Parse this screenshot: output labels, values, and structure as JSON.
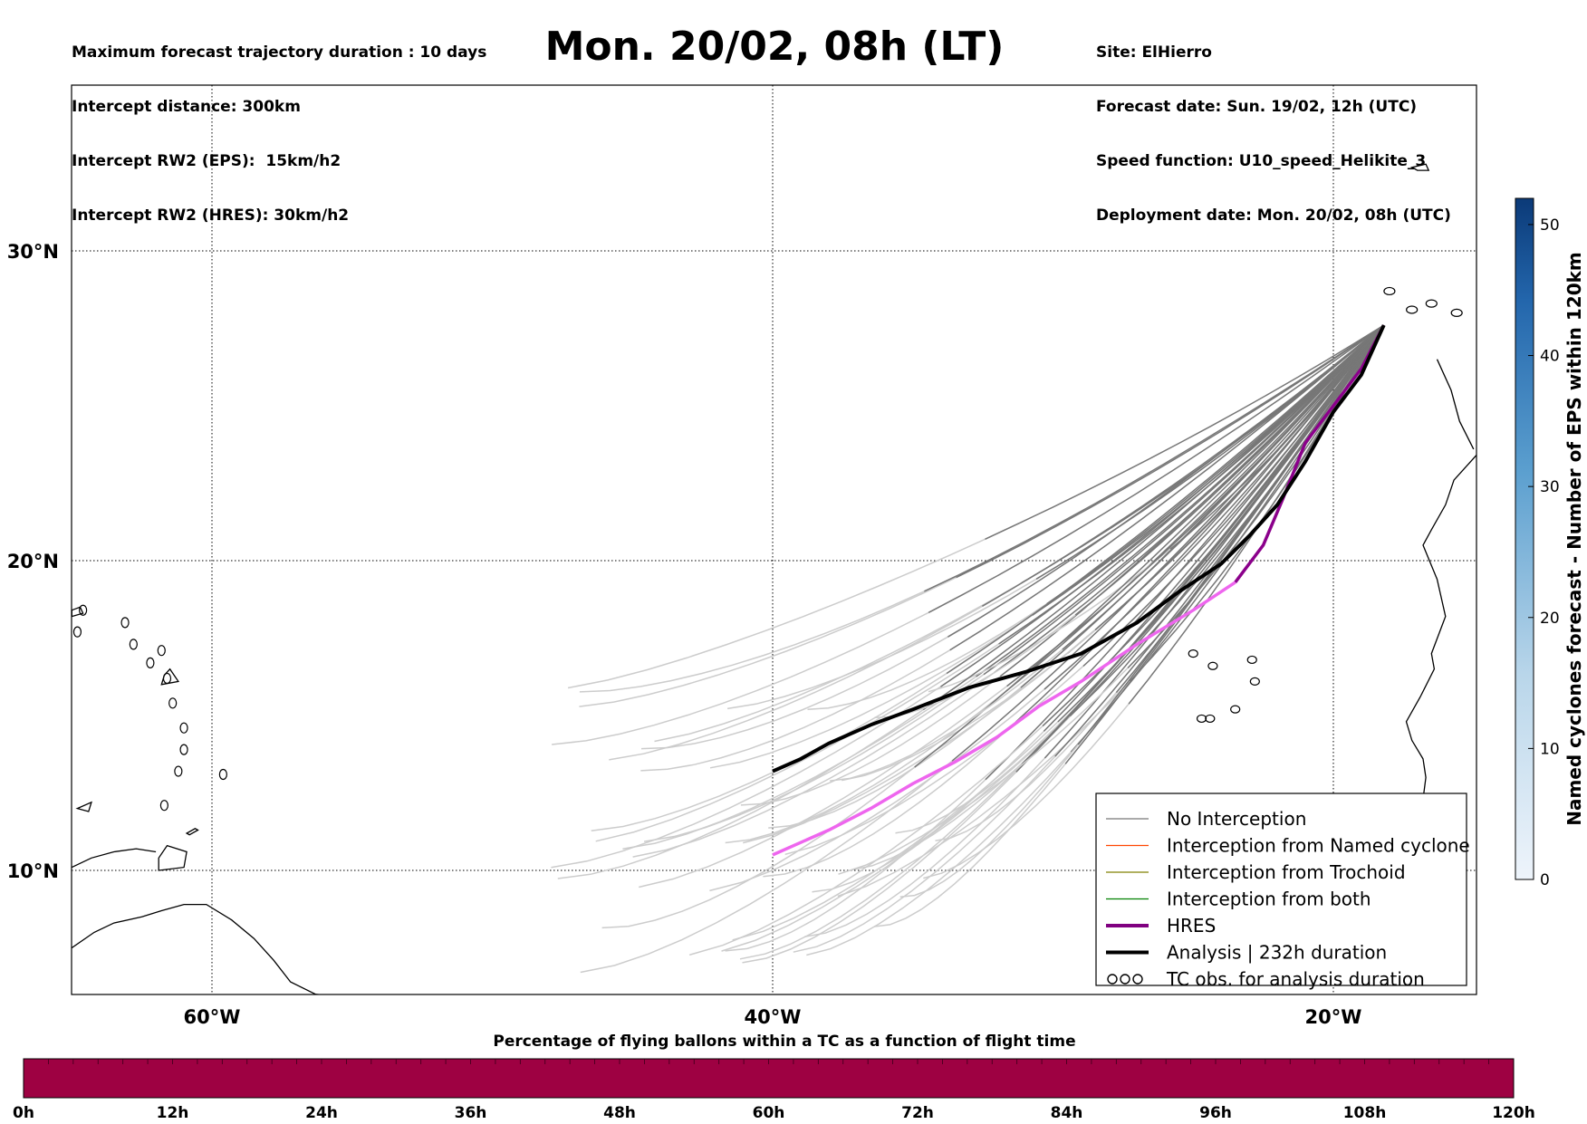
{
  "header": {
    "left_lines": [
      "Maximum forecast trajectory duration : 10 days",
      "Intercept distance: 300km",
      "Intercept RW2 (EPS):  15km/h2",
      "Intercept RW2 (HRES): 30km/h2"
    ],
    "title": "Mon. 20/02, 08h (LT)",
    "right_lines": [
      "Site: ElHierro",
      "Forecast date: Sun. 19/02, 12h (UTC)",
      "Speed function: U10_speed_Helikite_3",
      "Deployment date: Mon. 20/02, 08h (UTC)"
    ]
  },
  "map": {
    "lon_ticks": [
      {
        "lon": -60,
        "label": "60°W"
      },
      {
        "lon": -40,
        "label": "40°W"
      },
      {
        "lon": -20,
        "label": "20°W"
      }
    ],
    "lat_ticks": [
      {
        "lat": 30,
        "label": "30°N"
      },
      {
        "lat": 20,
        "label": "20°N"
      },
      {
        "lat": 10,
        "label": "10°N"
      }
    ],
    "extent": {
      "lon_min": -65,
      "lon_max": -15,
      "lat_min": 5.4,
      "lat_max": 35.3
    },
    "colors": {
      "eps_intercept_free": "#777777",
      "eps_late": "#cccccc",
      "hres_early": "#8b008b",
      "hres_late": "#ee66ee",
      "analysis": "#000000",
      "coast": "#000000"
    }
  },
  "chart_data": {
    "type": "line",
    "launch_site": {
      "lon": -18.2,
      "lat": 27.6
    },
    "series": [
      {
        "name": "Analysis | 232h duration",
        "lon": [
          -18.2,
          -19.0,
          -20.0,
          -21.0,
          -22.0,
          -23.0,
          -24.0,
          -25.5,
          -27.0,
          -29.0,
          -31.0,
          -33.0,
          -35.0,
          -36.5,
          -38.0,
          -39.0,
          -40.0
        ],
        "lat": [
          27.6,
          26.0,
          24.8,
          23.2,
          21.8,
          20.8,
          19.9,
          19.0,
          18.0,
          17.0,
          16.4,
          15.9,
          15.2,
          14.7,
          14.1,
          13.6,
          13.2
        ]
      },
      {
        "name": "HRES",
        "lon": [
          -18.2,
          -19.0,
          -20.0,
          -21.0,
          -21.8,
          -22.5,
          -23.5,
          -25.0,
          -27.0,
          -29.0,
          -30.5,
          -32.0,
          -33.5,
          -35.0,
          -36.5,
          -38.0,
          -40.0
        ],
        "lat": [
          27.6,
          26.2,
          25.0,
          23.8,
          22.0,
          20.5,
          19.3,
          18.4,
          17.3,
          16.1,
          15.3,
          14.3,
          13.5,
          12.8,
          12.0,
          11.3,
          10.5
        ]
      }
    ],
    "eps_members": 50
  },
  "legend": {
    "items": [
      {
        "label": "No Interception",
        "color": "#777777",
        "width": 1.2,
        "kind": "line"
      },
      {
        "label": "Interception from Named cyclone",
        "color": "#ff4500",
        "width": 1.2,
        "kind": "line"
      },
      {
        "label": "Interception from Trochoid",
        "color": "#808000",
        "width": 1.2,
        "kind": "line"
      },
      {
        "label": "Interception from both",
        "color": "#008000",
        "width": 1.2,
        "kind": "line"
      },
      {
        "label": "HRES",
        "color": "#800080",
        "width": 4,
        "kind": "line"
      },
      {
        "label": "Analysis | 232h duration",
        "color": "#000000",
        "width": 4,
        "kind": "line"
      },
      {
        "label": "TC obs. for analysis duration",
        "color": "#000000",
        "width": 1,
        "kind": "symbol"
      }
    ]
  },
  "colorbar_right": {
    "label": "Named cyclones forecast - Number of EPS within 120km",
    "min": 0,
    "max": 52,
    "ticks": [
      "0",
      "10",
      "20",
      "30",
      "40",
      "50"
    ],
    "tick_values": [
      0,
      10,
      20,
      30,
      40,
      50
    ],
    "color_low": "#e8f1fa",
    "color_high": "#08306b"
  },
  "colorbar_bottom": {
    "title": "Percentage of flying ballons within a TC as a function of flight time",
    "ticks": [
      "0h",
      "12h",
      "24h",
      "36h",
      "48h",
      "60h",
      "72h",
      "84h",
      "96h",
      "108h",
      "120h"
    ],
    "fill_color": "#9e0142"
  }
}
